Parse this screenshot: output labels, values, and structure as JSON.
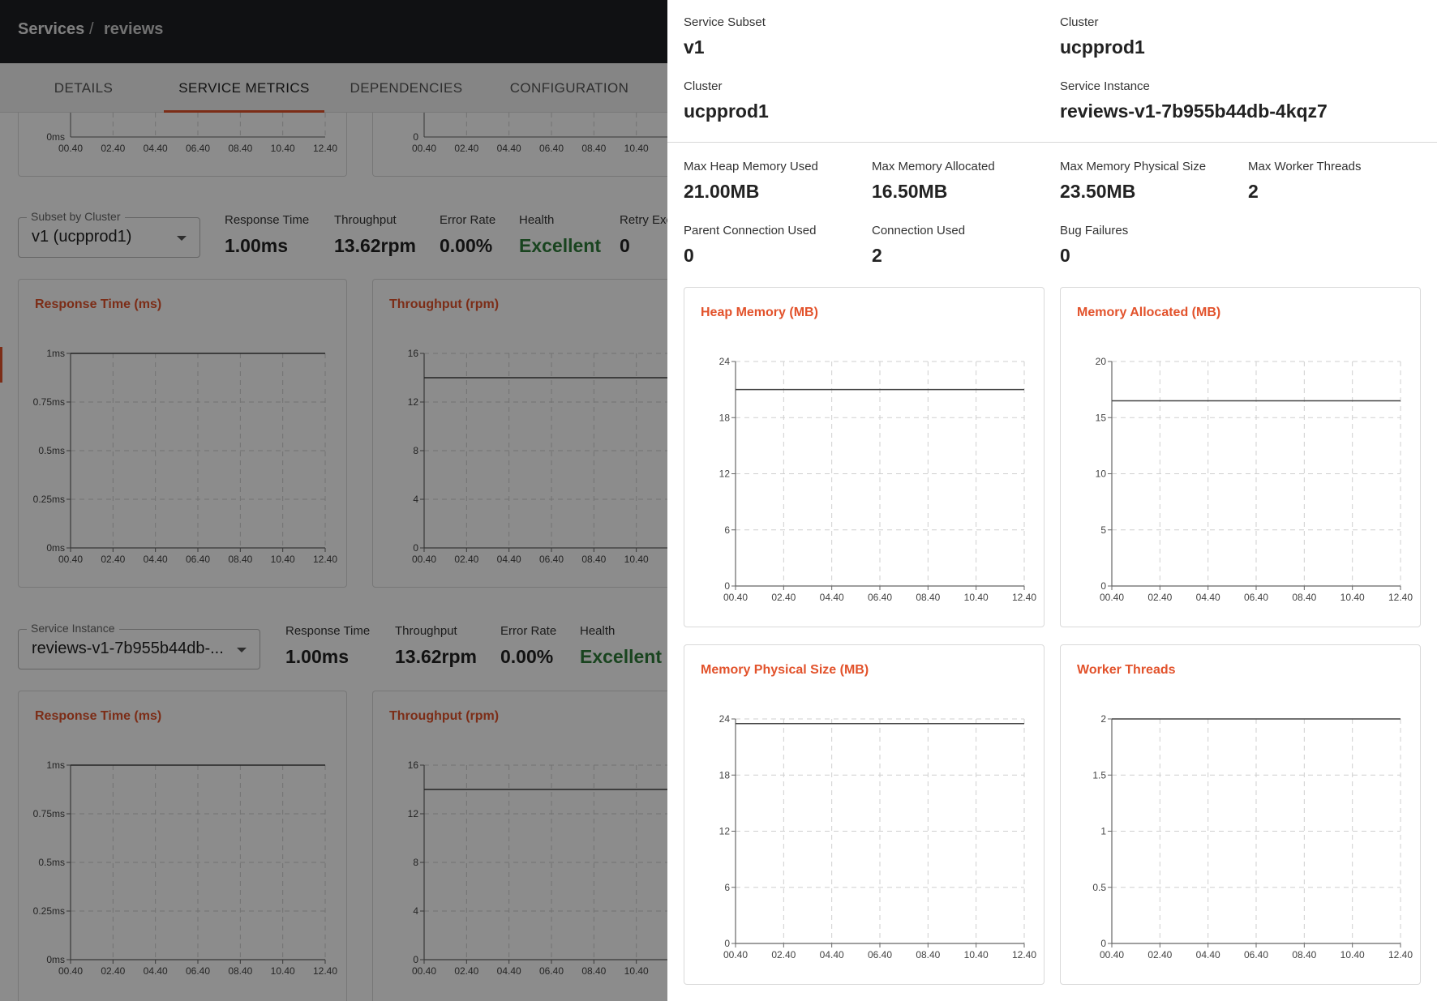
{
  "breadcrumb": {
    "root": "Services",
    "separator": "/",
    "current": "reviews"
  },
  "tabs": [
    "DETAILS",
    "SERVICE METRICS",
    "DEPENDENCIES",
    "CONFIGURATION"
  ],
  "active_tab": "SERVICE METRICS",
  "background": {
    "top_charts": {
      "x_ticks": [
        "00.40",
        "02.40",
        "04.40",
        "06.40",
        "08.40",
        "10.40",
        "12.40"
      ],
      "left_y_tick": "0ms",
      "right_y_tick": "0"
    },
    "subset_section": {
      "select_label": "Subset by Cluster",
      "select_value": "v1 (ucpprod1)",
      "stats": [
        {
          "label": "Response Time",
          "value": "1.00ms"
        },
        {
          "label": "Throughput",
          "value": "13.62rpm"
        },
        {
          "label": "Error Rate",
          "value": "0.00%"
        },
        {
          "label": "Health",
          "value": "Excellent"
        },
        {
          "label": "Retry Exc",
          "value": "0"
        }
      ]
    },
    "instance_section": {
      "select_label": "Service Instance",
      "select_value": "reviews-v1-7b955b44db-...",
      "stats": [
        {
          "label": "Response Time",
          "value": "1.00ms"
        },
        {
          "label": "Throughput",
          "value": "13.62rpm"
        },
        {
          "label": "Error Rate",
          "value": "0.00%"
        },
        {
          "label": "Health",
          "value": "Excellent"
        }
      ]
    },
    "charts": {
      "response_title": "Response Time (ms)",
      "throughput_title": "Throughput (rpm)"
    }
  },
  "drawer": {
    "header_fields": [
      {
        "label": "Service Subset",
        "value": "v1"
      },
      {
        "label": "Cluster",
        "value": "ucpprod1"
      },
      {
        "label": "Cluster",
        "value": "ucpprod1"
      },
      {
        "label": "Service Instance",
        "value": "reviews-v1-7b955b44db-4kqz7"
      }
    ],
    "metrics": [
      {
        "label": "Max Heap Memory Used",
        "value": "21.00MB"
      },
      {
        "label": "Max Memory Allocated",
        "value": "16.50MB"
      },
      {
        "label": "Max Memory Physical Size",
        "value": "23.50MB"
      },
      {
        "label": "Max Worker Threads",
        "value": "2"
      },
      {
        "label": "Parent Connection Used",
        "value": "0"
      },
      {
        "label": "Connection Used",
        "value": "2"
      },
      {
        "label": "Bug Failures",
        "value": "0"
      }
    ]
  },
  "colors": {
    "accent": "#e2522b",
    "health_good": "#2f7d3a",
    "topbar": "#1e1f24"
  },
  "chart_data": [
    {
      "type": "line",
      "title": "Heap Memory (MB)",
      "x": [
        "00.40",
        "02.40",
        "04.40",
        "06.40",
        "08.40",
        "10.40",
        "12.40"
      ],
      "series": [
        {
          "values": [
            21,
            21,
            21,
            21,
            21,
            21,
            21
          ]
        }
      ],
      "ylim": [
        0,
        24
      ],
      "y_ticks": [
        "0",
        "6",
        "12",
        "18",
        "24"
      ],
      "grid": true
    },
    {
      "type": "line",
      "title": "Memory Allocated (MB)",
      "x": [
        "00.40",
        "02.40",
        "04.40",
        "06.40",
        "08.40",
        "10.40",
        "12.40"
      ],
      "series": [
        {
          "values": [
            16.5,
            16.5,
            16.5,
            16.5,
            16.5,
            16.5,
            16.5
          ]
        }
      ],
      "ylim": [
        0,
        20
      ],
      "y_ticks": [
        "0",
        "5",
        "10",
        "15",
        "20"
      ],
      "grid": true
    },
    {
      "type": "line",
      "title": "Memory Physical Size (MB)",
      "x": [
        "00.40",
        "02.40",
        "04.40",
        "06.40",
        "08.40",
        "10.40",
        "12.40"
      ],
      "series": [
        {
          "values": [
            23.5,
            23.5,
            23.5,
            23.5,
            23.5,
            23.5,
            23.5
          ]
        }
      ],
      "ylim": [
        0,
        24
      ],
      "y_ticks": [
        "0",
        "6",
        "12",
        "18",
        "24"
      ],
      "grid": true
    },
    {
      "type": "line",
      "title": "Worker Threads",
      "x": [
        "00.40",
        "02.40",
        "04.40",
        "06.40",
        "08.40",
        "10.40",
        "12.40"
      ],
      "series": [
        {
          "values": [
            2,
            2,
            2,
            2,
            2,
            2,
            2
          ]
        }
      ],
      "ylim": [
        0,
        2
      ],
      "y_ticks": [
        "0",
        "0.5",
        "1",
        "1.5",
        "2"
      ],
      "grid": true
    },
    {
      "type": "line",
      "title": "Response Time (ms)",
      "x": [
        "00.40",
        "02.40",
        "04.40",
        "06.40",
        "08.40",
        "10.40",
        "12.40"
      ],
      "series": [
        {
          "values": [
            1,
            1,
            1,
            1,
            1,
            1,
            1
          ]
        }
      ],
      "ylim": [
        0,
        1
      ],
      "y_ticks": [
        "0ms",
        "0.25ms",
        "0.5ms",
        "0.75ms",
        "1ms"
      ],
      "grid": true
    },
    {
      "type": "line",
      "title": "Throughput (rpm)",
      "x": [
        "00.40",
        "02.40",
        "04.40",
        "06.40",
        "08.40",
        "10.40"
      ],
      "series": [
        {
          "values": [
            14,
            14,
            14,
            14,
            14,
            14
          ]
        }
      ],
      "ylim": [
        0,
        16
      ],
      "y_ticks": [
        "0",
        "4",
        "8",
        "12",
        "16"
      ],
      "grid": true
    }
  ]
}
